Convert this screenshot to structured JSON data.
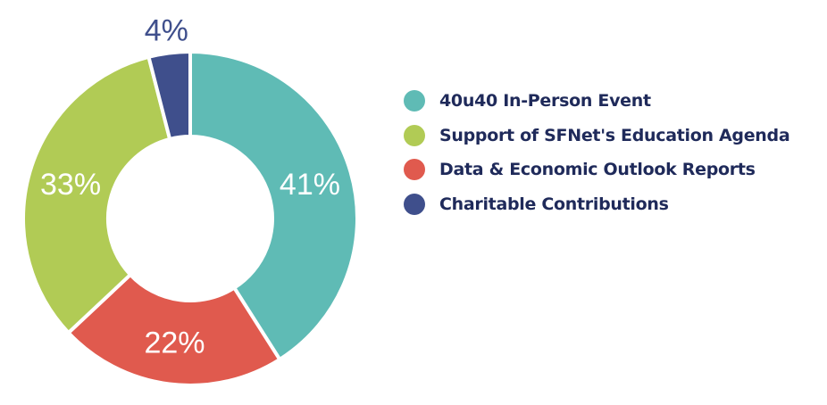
{
  "chart_data": {
    "type": "pie",
    "subtype": "donut",
    "title": "",
    "categories": [
      "40u40 In-Person Event",
      "Support of SFNet's Education Agenda",
      "Data & Economic Outlook Reports",
      "Charitable Contributions"
    ],
    "values": [
      41,
      33,
      22,
      4
    ],
    "labels": [
      "41%",
      "33%",
      "22%",
      "4%"
    ],
    "colors": [
      "#5fbbb5",
      "#b1cb55",
      "#e05a4e",
      "#3f4f8c"
    ],
    "order_clockwise_from_top": [
      0,
      2,
      1,
      3
    ],
    "legend_position": "right"
  }
}
